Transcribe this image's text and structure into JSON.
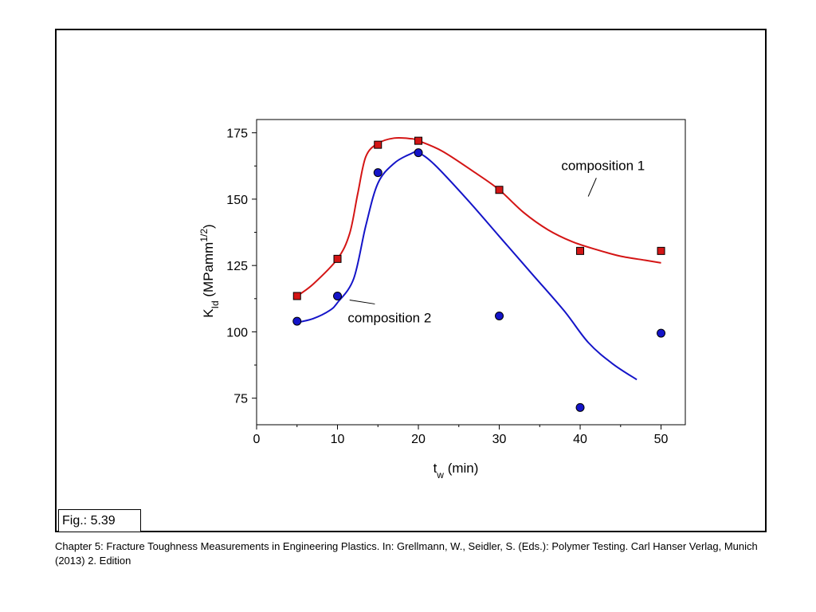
{
  "figure_label": "Fig.: 5.39",
  "caption": "Chapter 5: Fracture Toughness Measurements in Engineering Plastics. In: Grellmann, W., Seidler, S. (Eds.): Polymer Testing. Carl Hanser Verlag, Munich (2013) 2. Edition",
  "chart_data": {
    "type": "scatter",
    "title": "",
    "xlabel": {
      "main": "t",
      "sub": "w",
      "rest": " (min)"
    },
    "ylabel": {
      "main": "K",
      "sub": "Id",
      "rest": " (MPamm",
      "sup": "1/2",
      "end": ")"
    },
    "xlim": [
      0,
      53
    ],
    "ylim": [
      65,
      180
    ],
    "xticks": [
      0,
      10,
      20,
      30,
      40,
      50
    ],
    "yticks": [
      75,
      100,
      125,
      150,
      175
    ],
    "grid": false,
    "series": [
      {
        "name": "composition 1",
        "marker": "square",
        "color": "#d41515",
        "x": [
          5,
          10,
          15,
          20,
          30,
          40,
          50
        ],
        "y": [
          113.5,
          127.5,
          170.5,
          172,
          153.5,
          130.5,
          130.5
        ],
        "fit_curve": [
          [
            5,
            113.5
          ],
          [
            7,
            118
          ],
          [
            10,
            127.5
          ],
          [
            11.5,
            137
          ],
          [
            12.5,
            152
          ],
          [
            13.5,
            166
          ],
          [
            15,
            171
          ],
          [
            17,
            173
          ],
          [
            19,
            172.8
          ],
          [
            20,
            172
          ],
          [
            23,
            168
          ],
          [
            27,
            160
          ],
          [
            30,
            153.5
          ],
          [
            33,
            145
          ],
          [
            36,
            138.5
          ],
          [
            39,
            134
          ],
          [
            42,
            131
          ],
          [
            45,
            128.5
          ],
          [
            48,
            127
          ],
          [
            50,
            126
          ]
        ]
      },
      {
        "name": "composition 2",
        "marker": "circle",
        "color": "#1414c8",
        "x": [
          5,
          10,
          15,
          20,
          30,
          40,
          50
        ],
        "y": [
          104,
          113.5,
          160,
          167.5,
          106,
          71.5,
          99.5
        ],
        "fit_curve": [
          [
            5,
            103.5
          ],
          [
            7,
            105
          ],
          [
            9,
            108
          ],
          [
            10,
            111
          ],
          [
            12,
            120
          ],
          [
            13.5,
            140
          ],
          [
            15,
            156
          ],
          [
            17,
            163.5
          ],
          [
            19,
            167
          ],
          [
            20,
            167.5
          ],
          [
            22,
            163
          ],
          [
            26,
            150
          ],
          [
            30,
            136
          ],
          [
            34,
            122
          ],
          [
            38,
            108
          ],
          [
            41,
            96
          ],
          [
            44,
            88
          ],
          [
            47,
            82
          ]
        ]
      }
    ],
    "annotations": [
      {
        "text": "composition 1",
        "series": "composition 1",
        "anchor": [
          41,
          151
        ],
        "label_at": [
          42,
          158
        ]
      },
      {
        "text": "composition 2",
        "series": "composition 2",
        "anchor": [
          11.5,
          112
        ],
        "label_at": [
          16,
          103
        ]
      }
    ]
  }
}
